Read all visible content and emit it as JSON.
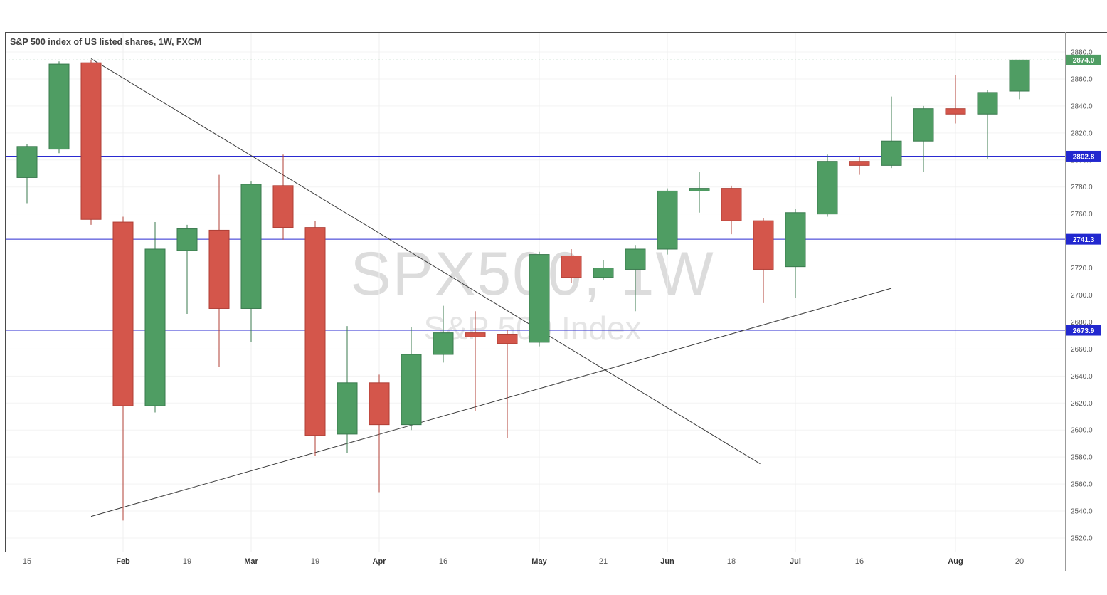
{
  "chart": {
    "title": "S&P 500 index of US listed shares, 1W, FXCM",
    "watermark_line1": "SPX500, 1W",
    "watermark_line2": "S&P 500 Index"
  },
  "colors": {
    "up": "#4f9d63",
    "up_border": "#3a7a4e",
    "down": "#d4564b",
    "down_border": "#b03f36",
    "level_line": "#2a2ad0",
    "level_badge": "#2228cf",
    "last_price_line": "#4f9d63",
    "last_price_badge": "#4f9d63",
    "trend_line": "#3c3c3c",
    "grid_h": "#f3f3f3",
    "grid_v": "#efefef",
    "axis_text": "#555555",
    "border_dark": "#4a4a4a",
    "border_light": "#9b9b9b"
  },
  "chart_data": {
    "type": "candlestick",
    "symbol": "SPX500",
    "timeframe": "1W",
    "title": "S&P 500 index of US listed shares, 1W, FXCM",
    "price_axis": {
      "min": 2520,
      "max": 2880,
      "step": 20,
      "tick_labels": [
        "2880.0",
        "2860.0",
        "2840.0",
        "2820.0",
        "2800.0",
        "2780.0",
        "2760.0",
        "2740.0",
        "2720.0",
        "2700.0",
        "2680.0",
        "2660.0",
        "2640.0",
        "2620.0",
        "2600.0",
        "2580.0",
        "2560.0",
        "2540.0",
        "2520.0"
      ]
    },
    "candle_format": [
      "open",
      "high",
      "low",
      "close"
    ],
    "candles": [
      [
        2787,
        2812,
        2768,
        2810
      ],
      [
        2808,
        2873,
        2805,
        2871
      ],
      [
        2872,
        2874,
        2752,
        2756
      ],
      [
        2754,
        2758,
        2533,
        2618
      ],
      [
        2618,
        2754,
        2613,
        2734
      ],
      [
        2733,
        2752,
        2686,
        2749
      ],
      [
        2748,
        2789,
        2647,
        2690
      ],
      [
        2690,
        2784,
        2665,
        2782
      ],
      [
        2781,
        2804,
        2741,
        2750
      ],
      [
        2750,
        2755,
        2581,
        2596
      ],
      [
        2597,
        2677,
        2583,
        2635
      ],
      [
        2635,
        2641,
        2554,
        2604
      ],
      [
        2604,
        2676,
        2600,
        2656
      ],
      [
        2656,
        2692,
        2650,
        2672
      ],
      [
        2672,
        2688,
        2614,
        2669
      ],
      [
        2671,
        2674,
        2594,
        2664
      ],
      [
        2665,
        2732,
        2662,
        2730
      ],
      [
        2729,
        2734,
        2709,
        2713
      ],
      [
        2713,
        2726,
        2711,
        2720
      ],
      [
        2719,
        2737,
        2688,
        2734
      ],
      [
        2734,
        2779,
        2730,
        2777
      ],
      [
        2777,
        2791,
        2761,
        2779
      ],
      [
        2779,
        2781,
        2745,
        2755
      ],
      [
        2755,
        2757,
        2694,
        2719
      ],
      [
        2721,
        2764,
        2698,
        2761
      ],
      [
        2760,
        2804,
        2758,
        2799
      ],
      [
        2799,
        2802,
        2789,
        2796
      ],
      [
        2796,
        2847,
        2794,
        2814
      ],
      [
        2814,
        2840,
        2791,
        2838
      ],
      [
        2838,
        2863,
        2827,
        2834
      ],
      [
        2834,
        2852,
        2801,
        2850
      ],
      [
        2851,
        2874,
        2845,
        2874
      ]
    ],
    "time_ticks": [
      {
        "i": 0,
        "label": "15",
        "month": false
      },
      {
        "i": 3,
        "label": "Feb",
        "month": true
      },
      {
        "i": 5,
        "label": "19",
        "month": false
      },
      {
        "i": 7,
        "label": "Mar",
        "month": true
      },
      {
        "i": 9,
        "label": "19",
        "month": false
      },
      {
        "i": 11,
        "label": "Apr",
        "month": true
      },
      {
        "i": 13,
        "label": "16",
        "month": false
      },
      {
        "i": 16,
        "label": "May",
        "month": true
      },
      {
        "i": 18,
        "label": "21",
        "month": false
      },
      {
        "i": 20,
        "label": "Jun",
        "month": true
      },
      {
        "i": 22,
        "label": "18",
        "month": false
      },
      {
        "i": 24,
        "label": "Jul",
        "month": true
      },
      {
        "i": 26,
        "label": "16",
        "month": false
      },
      {
        "i": 29,
        "label": "Aug",
        "month": true
      },
      {
        "i": 31,
        "label": "20",
        "month": false
      }
    ],
    "levels": [
      {
        "price": 2802.8,
        "label": "2802.8"
      },
      {
        "price": 2741.3,
        "label": "2741.3"
      },
      {
        "price": 2673.9,
        "label": "2673.9"
      }
    ],
    "last_price": {
      "price": 2874.0,
      "label": "2874.0"
    },
    "trend_lines": [
      {
        "name": "descending-trendline",
        "from_index": 2,
        "from_price": 2875,
        "to_index": 22.9,
        "to_price": 2575
      },
      {
        "name": "ascending-trendline",
        "from_index": 2,
        "from_price": 2536,
        "to_index": 27,
        "to_price": 2705
      }
    ]
  }
}
